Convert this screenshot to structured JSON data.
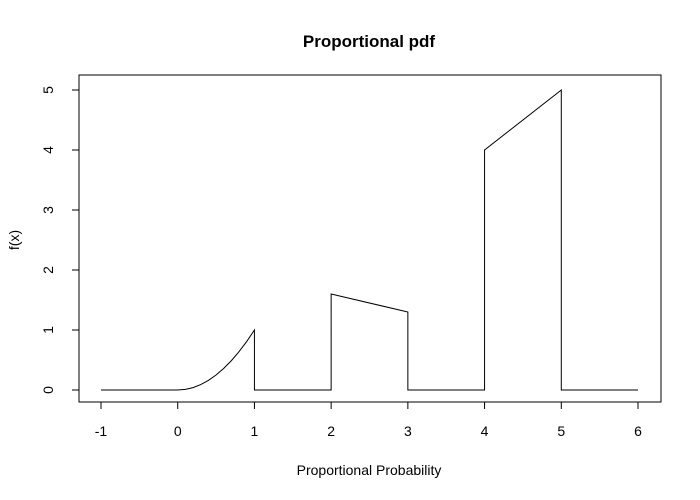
{
  "chart_data": {
    "type": "line",
    "title": "Proportional pdf",
    "xlabel": "Proportional Probability",
    "ylabel": "f(x)",
    "xlim": [
      -1,
      6
    ],
    "ylim": [
      0,
      5
    ],
    "x_ticks": [
      -1,
      0,
      1,
      2,
      3,
      4,
      5,
      6
    ],
    "y_ticks": [
      0,
      1,
      2,
      3,
      4,
      5
    ],
    "grid": false,
    "legend": "none",
    "line_color": "#000000",
    "series": [
      {
        "x": [
          -1,
          0,
          0.1,
          0.2,
          0.3,
          0.4,
          0.5,
          0.6,
          0.7,
          0.8,
          0.9,
          1,
          1,
          2,
          2,
          3,
          3,
          4,
          4,
          5,
          5,
          6
        ],
        "y": [
          0,
          0,
          0.01,
          0.04,
          0.09,
          0.16,
          0.25,
          0.36,
          0.49,
          0.64,
          0.81,
          1,
          0,
          0,
          1.6,
          1.3,
          0,
          0,
          4.0,
          5.0,
          0,
          0
        ]
      }
    ]
  }
}
